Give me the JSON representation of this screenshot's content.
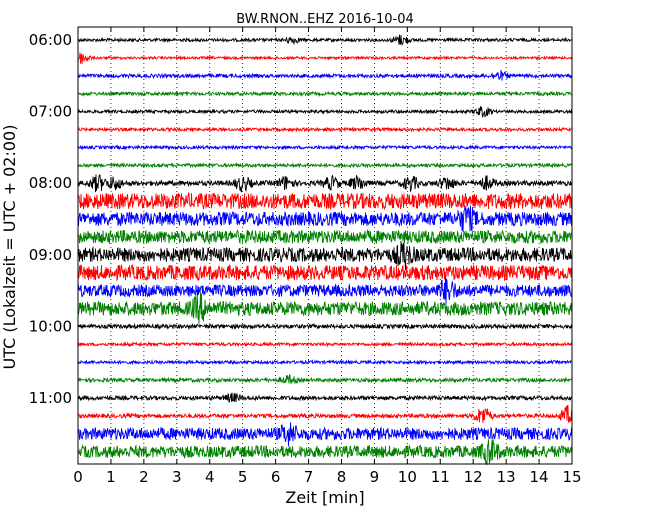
{
  "chart_data": {
    "type": "line",
    "title": "BW.RNON..EHZ 2016-10-04",
    "xlabel": "Zeit  [min]",
    "ylabel": "UTC (Lokalzeit = UTC + 02:00)",
    "xlim": [
      0,
      15
    ],
    "x_ticks": [
      "0",
      "1",
      "2",
      "3",
      "4",
      "5",
      "6",
      "7",
      "8",
      "9",
      "10",
      "11",
      "12",
      "13",
      "14",
      "15"
    ],
    "y_ticks": [
      {
        "label": "06:00",
        "row": 0
      },
      {
        "label": "07:00",
        "row": 4
      },
      {
        "label": "08:00",
        "row": 8
      },
      {
        "label": "09:00",
        "row": 12
      },
      {
        "label": "10:00",
        "row": 16
      },
      {
        "label": "11:00",
        "row": 20
      }
    ],
    "grid": "vertical dotted",
    "row_colors": [
      "#000000",
      "#ff0000",
      "#0000ff",
      "#008000"
    ],
    "traces": [
      {
        "start": "06:00",
        "amp": 1.5,
        "events": [
          [
            6.5,
            3
          ],
          [
            9.8,
            5
          ]
        ]
      },
      {
        "start": "06:15",
        "amp": 1.2,
        "events": [
          [
            0.1,
            6
          ]
        ]
      },
      {
        "start": "06:30",
        "amp": 1.8,
        "events": [
          [
            12.8,
            4
          ]
        ]
      },
      {
        "start": "06:45",
        "amp": 1.6,
        "events": []
      },
      {
        "start": "07:00",
        "amp": 1.5,
        "events": [
          [
            12.3,
            5
          ]
        ]
      },
      {
        "start": "07:15",
        "amp": 1.5,
        "events": []
      },
      {
        "start": "07:30",
        "amp": 1.5,
        "events": []
      },
      {
        "start": "07:45",
        "amp": 1.6,
        "events": []
      },
      {
        "start": "08:00",
        "amp": 2.5,
        "events": [
          [
            0.6,
            8
          ],
          [
            1.1,
            6
          ],
          [
            5.0,
            7
          ],
          [
            6.3,
            6
          ],
          [
            7.7,
            6
          ],
          [
            8.5,
            7
          ],
          [
            10.1,
            7
          ],
          [
            11.2,
            6
          ],
          [
            12.4,
            6
          ]
        ]
      },
      {
        "start": "08:15",
        "amp": 8.0,
        "events": []
      },
      {
        "start": "08:30",
        "amp": 7.0,
        "events": [
          [
            11.8,
            10
          ]
        ]
      },
      {
        "start": "08:45",
        "amp": 6.5,
        "events": []
      },
      {
        "start": "09:00",
        "amp": 7.0,
        "events": [
          [
            9.9,
            10
          ]
        ]
      },
      {
        "start": "09:15",
        "amp": 7.5,
        "events": []
      },
      {
        "start": "09:30",
        "amp": 6.0,
        "events": [
          [
            11.2,
            10
          ]
        ]
      },
      {
        "start": "09:45",
        "amp": 7.0,
        "events": [
          [
            3.7,
            10
          ]
        ]
      },
      {
        "start": "10:00",
        "amp": 2.0,
        "events": []
      },
      {
        "start": "10:15",
        "amp": 1.5,
        "events": []
      },
      {
        "start": "10:30",
        "amp": 1.5,
        "events": []
      },
      {
        "start": "10:45",
        "amp": 1.8,
        "events": [
          [
            6.4,
            4
          ]
        ]
      },
      {
        "start": "11:00",
        "amp": 2.0,
        "events": [
          [
            4.7,
            4
          ]
        ]
      },
      {
        "start": "11:15",
        "amp": 2.0,
        "events": [
          [
            12.3,
            9
          ],
          [
            14.9,
            10
          ]
        ]
      },
      {
        "start": "11:30",
        "amp": 6.0,
        "events": [
          [
            6.4,
            8
          ]
        ]
      },
      {
        "start": "11:45",
        "amp": 6.0,
        "events": [
          [
            12.5,
            10
          ]
        ]
      }
    ]
  }
}
